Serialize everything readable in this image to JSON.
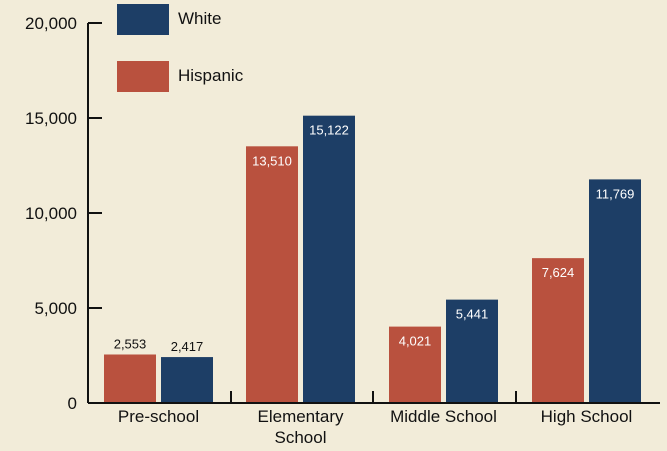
{
  "chart_data": {
    "type": "bar",
    "title": "",
    "xlabel": "",
    "ylabel": "",
    "categories": [
      [
        "Pre-school"
      ],
      [
        "Elementary",
        "School"
      ],
      [
        "Middle School"
      ],
      [
        "High School"
      ]
    ],
    "series": [
      {
        "name": "Hispanic",
        "color": "#b9513e",
        "values": [
          2553,
          13510,
          4021,
          7624
        ]
      },
      {
        "name": "White",
        "color": "#1d3e66",
        "values": [
          2417,
          15122,
          5441,
          11769
        ]
      }
    ],
    "data_labels": [
      [
        "2,553",
        "13,510",
        "4,021",
        "7,624"
      ],
      [
        "2,417",
        "15,122",
        "5,441",
        "11,769"
      ]
    ],
    "ylim": [
      0,
      20000
    ],
    "yticks": [
      0,
      5000,
      10000,
      15000,
      20000
    ],
    "ytick_labels": [
      "0",
      "5,000",
      "10,000",
      "15,000",
      "20,000"
    ],
    "legend": {
      "placement": "top-left",
      "order": [
        "White",
        "Hispanic"
      ]
    },
    "grid": false,
    "background": "#f2ecd9"
  }
}
